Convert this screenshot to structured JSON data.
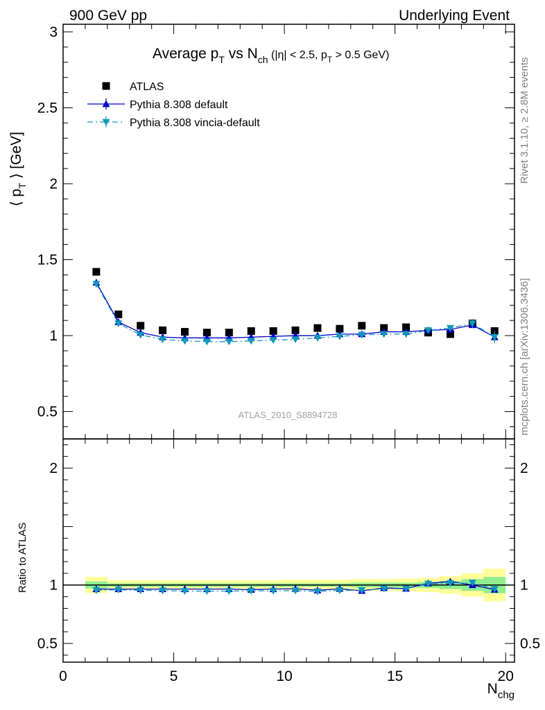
{
  "header": {
    "left": "900 GeV pp",
    "right": "Underlying Event"
  },
  "side_labels": {
    "top": "Rivet 3.1.10, ≥ 2.8M events",
    "bottom": "mcplots.cern.ch [arXiv:1306.3436]"
  },
  "watermark": "ATLAS_2010_S8894728",
  "chart_data": [
    {
      "type": "scatter",
      "panel": "main",
      "title_parts": {
        "a": "Average p",
        "a_sub": "T",
        "b": " vs N",
        "b_sub": "ch",
        "c": " (|η| < 2.5, p",
        "c_sub": "T",
        "d": " > 0.5 GeV)"
      },
      "ylabel_parts": {
        "a": "⟨ p",
        "sub": "T",
        "b": " ⟩ [GeV]"
      },
      "xlim": [
        0,
        20.4
      ],
      "ylim": [
        0.32,
        3.05
      ],
      "yticks": [
        0.5,
        1,
        1.5,
        2,
        2.5,
        3
      ],
      "ytick_labels": [
        "0.5",
        "1",
        "1.5",
        "2",
        "2.5",
        "3"
      ],
      "legend_position": "top-left",
      "x": [
        1.5,
        2.5,
        3.5,
        4.5,
        5.5,
        6.5,
        7.5,
        8.5,
        9.5,
        10.5,
        11.5,
        12.5,
        13.5,
        14.5,
        15.5,
        16.5,
        17.5,
        18.5,
        19.5
      ],
      "series": [
        {
          "name": "ATLAS",
          "marker": "square",
          "color": "#000000",
          "values": [
            1.42,
            1.14,
            1.065,
            1.035,
            1.025,
            1.02,
            1.02,
            1.03,
            1.03,
            1.035,
            1.05,
            1.045,
            1.065,
            1.05,
            1.055,
            1.02,
            1.01,
            1.08,
            1.03
          ]
        },
        {
          "name": "Pythia 8.308 default",
          "marker": "triangle-up",
          "color": "#0000cc",
          "line": "solid",
          "values": [
            1.35,
            1.09,
            1.02,
            0.99,
            0.985,
            0.985,
            0.985,
            0.99,
            0.995,
            1.0,
            1.0,
            1.01,
            1.01,
            1.025,
            1.025,
            1.035,
            1.04,
            1.07,
            0.99
          ],
          "errors": [
            0.01,
            0.005,
            0.005,
            0.005,
            0.005,
            0.005,
            0.005,
            0.005,
            0.005,
            0.005,
            0.005,
            0.005,
            0.008,
            0.008,
            0.01,
            0.012,
            0.015,
            0.02,
            0.03
          ]
        },
        {
          "name": "Pythia 8.308 vincia-default",
          "marker": "triangle-down",
          "color": "#1199bb",
          "line": "dashdot",
          "values": [
            1.34,
            1.08,
            1.005,
            0.975,
            0.965,
            0.96,
            0.96,
            0.965,
            0.97,
            0.975,
            0.985,
            0.995,
            1.005,
            1.01,
            1.01,
            1.035,
            1.05,
            1.08,
            0.99
          ],
          "errors": [
            0.01,
            0.005,
            0.005,
            0.005,
            0.005,
            0.005,
            0.005,
            0.005,
            0.005,
            0.005,
            0.005,
            0.006,
            0.008,
            0.008,
            0.01,
            0.012,
            0.02,
            0.03,
            0.04
          ]
        }
      ]
    },
    {
      "type": "scatter",
      "panel": "ratio",
      "ylabel": "Ratio to ATLAS",
      "xlabel_parts": {
        "a": "N",
        "sub": "chg"
      },
      "xlim": [
        0,
        20.4
      ],
      "ylim": [
        0.34,
        2.25
      ],
      "yticks": [
        0.5,
        1,
        2
      ],
      "ytick_labels": [
        "0.5",
        "1",
        "2"
      ],
      "xticks": [
        0,
        5,
        10,
        15,
        20
      ],
      "xtick_labels": [
        "0",
        "5",
        "10",
        "15",
        "20"
      ],
      "uncertainty_bands": {
        "x_low": [
          1,
          2,
          3,
          4,
          5,
          6,
          7,
          8,
          9,
          10,
          11,
          12,
          13,
          14,
          15,
          16,
          17,
          18,
          19
        ],
        "x_high": [
          2,
          3,
          4,
          5,
          6,
          7,
          8,
          9,
          10,
          11,
          12,
          13,
          14,
          15,
          16,
          17,
          18,
          19,
          20
        ],
        "stat": [
          0.03,
          0.015,
          0.015,
          0.015,
          0.015,
          0.015,
          0.015,
          0.015,
          0.015,
          0.015,
          0.015,
          0.015,
          0.02,
          0.02,
          0.02,
          0.025,
          0.035,
          0.05,
          0.07
        ],
        "total": [
          0.07,
          0.04,
          0.04,
          0.04,
          0.04,
          0.04,
          0.04,
          0.04,
          0.04,
          0.045,
          0.045,
          0.045,
          0.05,
          0.05,
          0.055,
          0.06,
          0.075,
          0.1,
          0.14
        ],
        "stat_color": "#90ee90",
        "total_color": "#ffff99"
      },
      "x": [
        1.5,
        2.5,
        3.5,
        4.5,
        5.5,
        6.5,
        7.5,
        8.5,
        9.5,
        10.5,
        11.5,
        12.5,
        13.5,
        14.5,
        15.5,
        16.5,
        17.5,
        18.5,
        19.5
      ],
      "series": [
        {
          "marker": "triangle-up",
          "color": "#0000cc",
          "line": "solid",
          "values": [
            0.965,
            0.965,
            0.965,
            0.965,
            0.965,
            0.965,
            0.965,
            0.96,
            0.965,
            0.968,
            0.955,
            0.968,
            0.95,
            0.975,
            0.97,
            1.015,
            1.03,
            1.0,
            0.96
          ]
        },
        {
          "marker": "triangle-down",
          "color": "#1199bb",
          "line": "dashdot",
          "values": [
            0.955,
            0.96,
            0.955,
            0.952,
            0.948,
            0.948,
            0.948,
            0.95,
            0.95,
            0.952,
            0.945,
            0.955,
            0.955,
            0.968,
            0.968,
            1.01,
            1.015,
            1.02,
            0.965
          ]
        }
      ]
    }
  ]
}
